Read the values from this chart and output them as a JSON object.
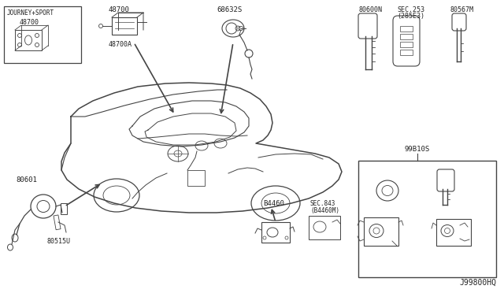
{
  "bg_color": "#ffffff",
  "diagram_code": "J99800HQ",
  "lc": "#444444",
  "tc": "#222222",
  "labels": {
    "journey_sport": "JOURNEY+SPORT",
    "l48700": "48700",
    "l48700A": "48700A",
    "l68632S": "68632S",
    "l80600N": "80600N",
    "lsec253": "SEC.253",
    "lsec253b": "(285E3)",
    "l80567M": "80567M",
    "l99B10S": "99B10S",
    "l80601": "80601",
    "l80515U": "80515U",
    "lB4460": "B4460",
    "lsec843": "SEC.843",
    "lsec843b": "(B4460M)"
  }
}
